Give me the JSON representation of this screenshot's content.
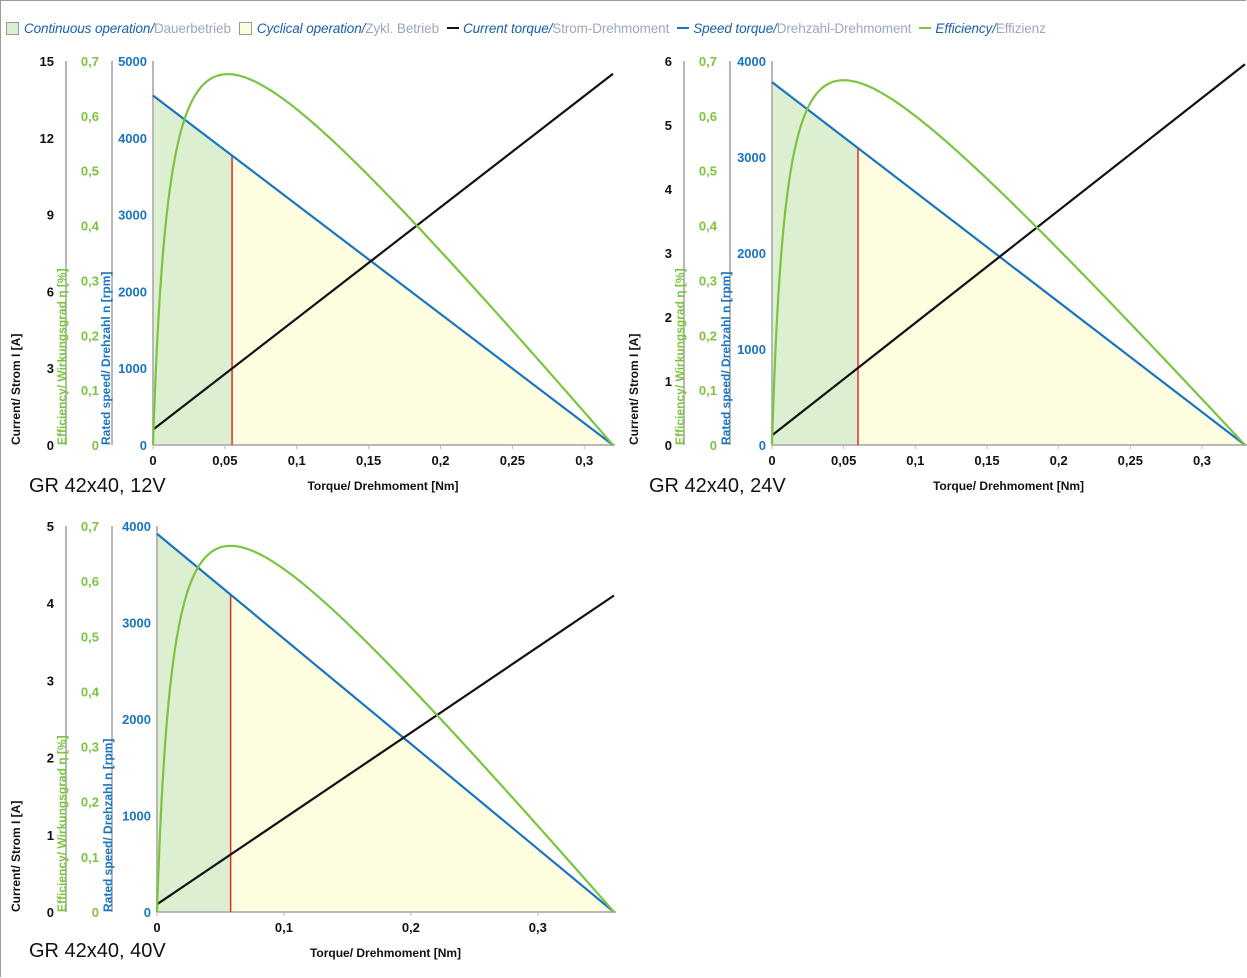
{
  "legend": {
    "continuous_en": "Continuous operation/",
    "continuous_de": "Dauerbetrieb",
    "cyclical_en": "Cyclical operation/",
    "cyclical_de": "Zykl. Betrieb",
    "current_en": "Current torque/",
    "current_de": "Strom-Drehmoment",
    "speed_en": "Speed torque/",
    "speed_de": "Drehzahl-Drehmoment",
    "efficiency_en": "Efficiency/",
    "efficiency_de": "Effizienz"
  },
  "colors": {
    "current": "#111111",
    "speed": "#1a75c0",
    "efficiency": "#7cc440",
    "continuous_fill": "#dcefd0",
    "cyclical_fill": "#fefde0",
    "limit_line": "#e0302a",
    "axis_grey": "#b8b8b8",
    "current_axis_label": "#111111",
    "efficiency_axis_label": "#7cc440",
    "speed_axis_label": "#1a75c0"
  },
  "chart_data": [
    {
      "type": "line",
      "caption": "GR 42x40, 12V",
      "xlabel": "Torque/ Drehmoment [Nm]",
      "ylabel_current": "Current/ Strom I [A]",
      "ylabel_efficiency": "Efficiency/ Wirkungsgrad η [%]",
      "ylabel_speed": "Rated speed/ Drehzahl n [rpm]",
      "xlim": [
        0,
        0.32
      ],
      "x_ticks": [
        0,
        0.05,
        0.1,
        0.15,
        0.2,
        0.25,
        0.3
      ],
      "x_tick_labels": [
        "0",
        "0,05",
        "0,1",
        "0,15",
        "0,2",
        "0,25",
        "0,3"
      ],
      "current_ticks": [
        0,
        3,
        6,
        9,
        12,
        15
      ],
      "current_tick_labels": [
        "0",
        "3",
        "6",
        "9",
        "12",
        "15"
      ],
      "efficiency_ticks": [
        0,
        0.1,
        0.2,
        0.3,
        0.4,
        0.5,
        0.6,
        0.7
      ],
      "efficiency_tick_labels": [
        "0",
        "0,1",
        "0,2",
        "0,3",
        "0,4",
        "0,5",
        "0,6",
        "0,7"
      ],
      "speed_ticks": [
        0,
        1000,
        2000,
        3000,
        4000,
        5000
      ],
      "speed_tick_labels": [
        "0",
        "1000",
        "2000",
        "3000",
        "4000",
        "5000"
      ],
      "current_max": 15,
      "efficiency_max": 0.7,
      "speed_max": 5000,
      "stall_torque": 0.32,
      "no_load_speed": 4550,
      "current_line": [
        [
          0,
          0.6
        ],
        [
          0.32,
          14.5
        ]
      ],
      "speed_line": [
        [
          0,
          4550
        ],
        [
          0.32,
          0
        ]
      ],
      "efficiency_peak": [
        0.052,
        0.676
      ],
      "continuous_torque_limit": 0.055
    },
    {
      "type": "line",
      "caption": "GR 42x40, 24V",
      "xlabel": "Torque/ Drehmoment [Nm]",
      "ylabel_current": "Current/ Strom I [A]",
      "ylabel_efficiency": "Efficiency/ Wirkungsgrad η [%]",
      "ylabel_speed": "Rated speed/ Drehzahl n [rpm]",
      "xlim": [
        0,
        0.33
      ],
      "x_ticks": [
        0,
        0.05,
        0.1,
        0.15,
        0.2,
        0.25,
        0.3
      ],
      "x_tick_labels": [
        "0",
        "0,05",
        "0,1",
        "0,15",
        "0,2",
        "0,25",
        "0,3"
      ],
      "current_ticks": [
        0,
        1,
        2,
        3,
        4,
        5,
        6
      ],
      "current_tick_labels": [
        "0",
        "1",
        "2",
        "3",
        "4",
        "5",
        "6"
      ],
      "efficiency_ticks": [
        0,
        0.1,
        0.2,
        0.3,
        0.4,
        0.5,
        0.6,
        0.7
      ],
      "efficiency_tick_labels": [
        "0",
        "0,1",
        "0,2",
        "0,3",
        "0,4",
        "0,5",
        "0,6",
        "0,7"
      ],
      "speed_ticks": [
        0,
        1000,
        2000,
        3000,
        4000
      ],
      "speed_tick_labels": [
        "0",
        "1000",
        "2000",
        "3000",
        "4000"
      ],
      "current_max": 6,
      "efficiency_max": 0.7,
      "speed_max": 4000,
      "stall_torque": 0.33,
      "no_load_speed": 3780,
      "current_line": [
        [
          0,
          0.15
        ],
        [
          0.33,
          5.95
        ]
      ],
      "speed_line": [
        [
          0,
          3780
        ],
        [
          0.33,
          0
        ]
      ],
      "efficiency_peak": [
        0.05,
        0.665
      ],
      "continuous_torque_limit": 0.06
    },
    {
      "type": "line",
      "caption": "GR 42x40, 40V",
      "xlabel": "Torque/ Drehmoment [Nm]",
      "ylabel_current": "Current/ Strom I [A]",
      "ylabel_efficiency": "Efficiency/ Wirkungsgrad η [%]",
      "ylabel_speed": "Rated speed/ Drehzahl n [rpm]",
      "xlim": [
        0,
        0.36
      ],
      "x_ticks": [
        0,
        0.1,
        0.2,
        0.3
      ],
      "x_tick_labels": [
        "0",
        "0,1",
        "0,2",
        "0,3"
      ],
      "current_ticks": [
        0,
        1,
        2,
        3,
        4,
        5
      ],
      "current_tick_labels": [
        "0",
        "1",
        "2",
        "3",
        "4",
        "5"
      ],
      "efficiency_ticks": [
        0,
        0.1,
        0.2,
        0.3,
        0.4,
        0.5,
        0.6,
        0.7
      ],
      "efficiency_tick_labels": [
        "0",
        "0,1",
        "0,2",
        "0,3",
        "0,4",
        "0,5",
        "0,6",
        "0,7"
      ],
      "speed_ticks": [
        0,
        1000,
        2000,
        3000,
        4000
      ],
      "speed_tick_labels": [
        "0",
        "1000",
        "2000",
        "3000",
        "4000"
      ],
      "current_max": 5,
      "efficiency_max": 0.7,
      "speed_max": 4000,
      "stall_torque": 0.36,
      "no_load_speed": 3920,
      "current_line": [
        [
          0,
          0.1
        ],
        [
          0.36,
          4.1
        ]
      ],
      "speed_line": [
        [
          0,
          3920
        ],
        [
          0.36,
          0
        ]
      ],
      "efficiency_peak": [
        0.058,
        0.664
      ],
      "continuous_torque_limit": 0.058
    }
  ]
}
